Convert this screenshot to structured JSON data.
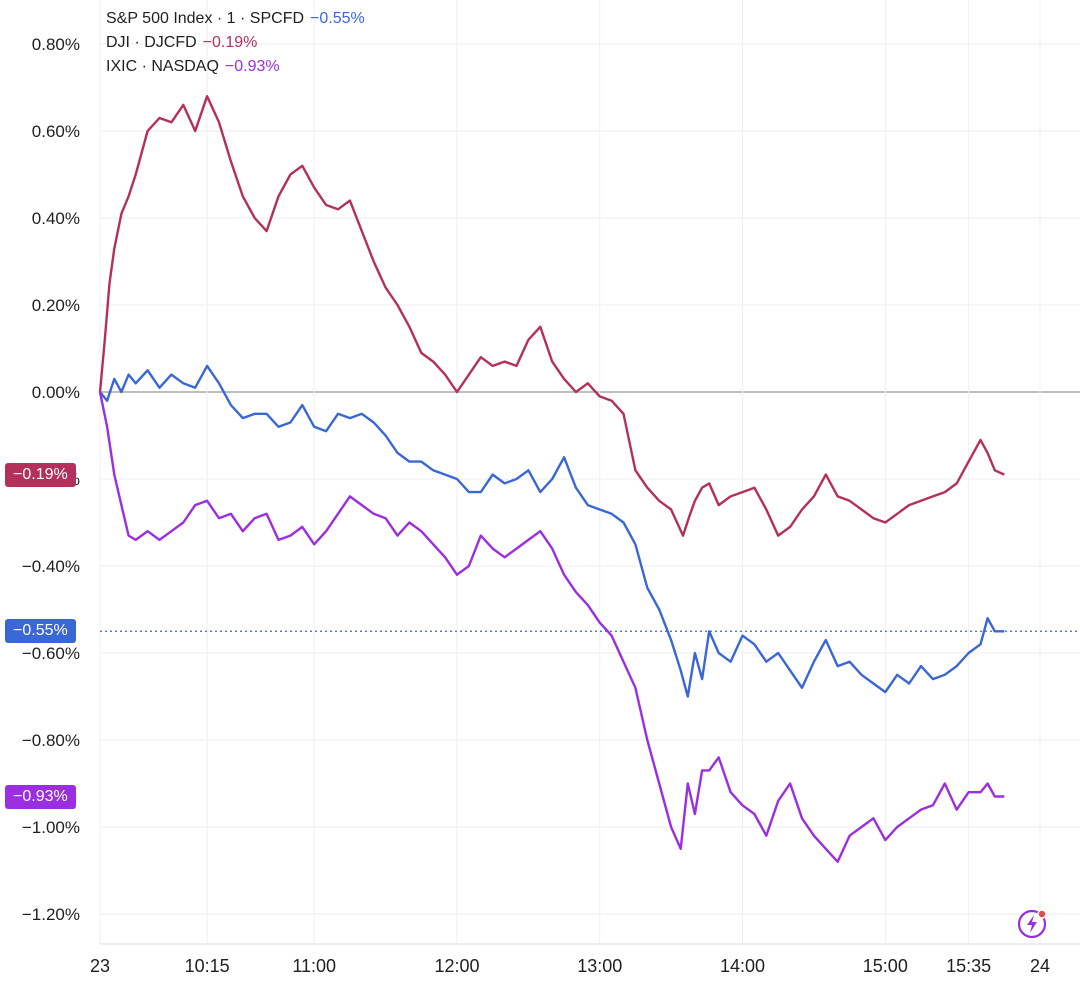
{
  "legend": [
    {
      "label": "S&P 500 Index · 1 · SPCFD",
      "value": "−0.55%",
      "color": "#3a67d6"
    },
    {
      "label": "DJI · DJCFD",
      "value": "−0.19%",
      "color": "#b4305a"
    },
    {
      "label": "IXIC · NASDAQ",
      "value": "−0.93%",
      "color": "#9b2ee0"
    }
  ],
  "tags": [
    {
      "text": "−0.19%",
      "color": "#b4305a"
    },
    {
      "text": "−0.55%",
      "color": "#3a67d6"
    },
    {
      "text": "−0.93%",
      "color": "#9b2ee0"
    }
  ],
  "flash_icon": "lightning-icon",
  "chart_data": {
    "type": "line",
    "title": "",
    "xlabel": "",
    "ylabel": "",
    "y_ticks": [
      "0.80%",
      "0.60%",
      "0.40%",
      "0.20%",
      "0.00%",
      "−0.20%",
      "−0.40%",
      "−0.60%",
      "−0.80%",
      "−1.00%",
      "−1.20%"
    ],
    "y_tick_values": [
      0.8,
      0.6,
      0.4,
      0.2,
      0.0,
      -0.2,
      -0.4,
      -0.6,
      -0.8,
      -1.0,
      -1.2
    ],
    "ylim": [
      -1.26,
      0.84
    ],
    "x_ticks": [
      "23",
      "10:15",
      "11:00",
      "12:00",
      "13:00",
      "14:00",
      "15:00",
      "15:35",
      "24"
    ],
    "x_tick_minutes": [
      0,
      45,
      90,
      150,
      210,
      270,
      330,
      365,
      395
    ],
    "xlim_minutes": [
      -3,
      400
    ],
    "grid": true,
    "zero_line": 0.0,
    "series": [
      {
        "name": "S&P 500 Index · 1 · SPCFD",
        "color": "#3a67d6",
        "last": -0.55,
        "t": [
          0,
          3,
          6,
          9,
          12,
          15,
          20,
          25,
          30,
          35,
          40,
          45,
          50,
          55,
          60,
          65,
          70,
          75,
          80,
          85,
          90,
          95,
          100,
          105,
          110,
          115,
          120,
          125,
          130,
          135,
          140,
          145,
          150,
          155,
          160,
          165,
          170,
          175,
          180,
          185,
          190,
          195,
          200,
          205,
          210,
          215,
          220,
          225,
          230,
          235,
          240,
          244,
          247,
          250,
          253,
          256,
          260,
          265,
          270,
          275,
          280,
          285,
          290,
          295,
          300,
          305,
          310,
          315,
          320,
          325,
          330,
          335,
          340,
          345,
          350,
          355,
          360,
          365,
          370,
          373,
          376,
          380
        ],
        "v": [
          0.0,
          -0.02,
          0.03,
          0.0,
          0.04,
          0.02,
          0.05,
          0.01,
          0.04,
          0.02,
          0.01,
          0.06,
          0.02,
          -0.03,
          -0.06,
          -0.05,
          -0.05,
          -0.08,
          -0.07,
          -0.03,
          -0.08,
          -0.09,
          -0.05,
          -0.06,
          -0.05,
          -0.07,
          -0.1,
          -0.14,
          -0.16,
          -0.16,
          -0.18,
          -0.19,
          -0.2,
          -0.23,
          -0.23,
          -0.19,
          -0.21,
          -0.2,
          -0.18,
          -0.23,
          -0.2,
          -0.15,
          -0.22,
          -0.26,
          -0.27,
          -0.28,
          -0.3,
          -0.35,
          -0.45,
          -0.5,
          -0.57,
          -0.64,
          -0.7,
          -0.6,
          -0.66,
          -0.55,
          -0.6,
          -0.62,
          -0.56,
          -0.58,
          -0.62,
          -0.6,
          -0.64,
          -0.68,
          -0.62,
          -0.57,
          -0.63,
          -0.62,
          -0.65,
          -0.67,
          -0.69,
          -0.65,
          -0.67,
          -0.63,
          -0.66,
          -0.65,
          -0.63,
          -0.6,
          -0.58,
          -0.52,
          -0.55,
          -0.55
        ]
      },
      {
        "name": "DJI · DJCFD",
        "color": "#b4305a",
        "last": -0.19,
        "t": [
          0,
          2,
          4,
          6,
          9,
          12,
          15,
          20,
          25,
          30,
          35,
          40,
          45,
          50,
          55,
          60,
          65,
          70,
          75,
          80,
          85,
          90,
          95,
          100,
          105,
          110,
          115,
          120,
          125,
          130,
          135,
          140,
          145,
          150,
          155,
          160,
          165,
          170,
          175,
          180,
          185,
          190,
          195,
          200,
          205,
          210,
          215,
          220,
          225,
          230,
          235,
          240,
          245,
          248,
          250,
          253,
          256,
          260,
          265,
          270,
          275,
          280,
          285,
          290,
          295,
          300,
          305,
          310,
          315,
          320,
          325,
          330,
          335,
          340,
          345,
          350,
          355,
          360,
          365,
          370,
          373,
          376,
          380
        ],
        "v": [
          0.0,
          0.12,
          0.25,
          0.33,
          0.41,
          0.45,
          0.5,
          0.6,
          0.63,
          0.62,
          0.66,
          0.6,
          0.68,
          0.62,
          0.53,
          0.45,
          0.4,
          0.37,
          0.45,
          0.5,
          0.52,
          0.47,
          0.43,
          0.42,
          0.44,
          0.37,
          0.3,
          0.24,
          0.2,
          0.15,
          0.09,
          0.07,
          0.04,
          0.0,
          0.04,
          0.08,
          0.06,
          0.07,
          0.06,
          0.12,
          0.15,
          0.07,
          0.03,
          0.0,
          0.02,
          -0.01,
          -0.02,
          -0.05,
          -0.18,
          -0.22,
          -0.25,
          -0.27,
          -0.33,
          -0.28,
          -0.25,
          -0.22,
          -0.21,
          -0.26,
          -0.24,
          -0.23,
          -0.22,
          -0.27,
          -0.33,
          -0.31,
          -0.27,
          -0.24,
          -0.19,
          -0.24,
          -0.25,
          -0.27,
          -0.29,
          -0.3,
          -0.28,
          -0.26,
          -0.25,
          -0.24,
          -0.23,
          -0.21,
          -0.16,
          -0.11,
          -0.14,
          -0.18,
          -0.19
        ]
      },
      {
        "name": "IXIC · NASDAQ",
        "color": "#9b2ee0",
        "last": -0.93,
        "t": [
          0,
          3,
          6,
          9,
          12,
          15,
          20,
          25,
          30,
          35,
          40,
          45,
          50,
          55,
          60,
          65,
          70,
          75,
          80,
          85,
          90,
          95,
          100,
          105,
          110,
          115,
          120,
          125,
          130,
          135,
          140,
          145,
          150,
          155,
          160,
          165,
          170,
          175,
          180,
          185,
          190,
          195,
          200,
          205,
          210,
          215,
          220,
          225,
          230,
          235,
          240,
          244,
          247,
          250,
          253,
          256,
          260,
          265,
          270,
          275,
          280,
          285,
          290,
          295,
          300,
          305,
          310,
          315,
          320,
          325,
          330,
          335,
          340,
          345,
          350,
          355,
          360,
          365,
          370,
          373,
          376,
          380
        ],
        "v": [
          0.0,
          -0.08,
          -0.19,
          -0.26,
          -0.33,
          -0.34,
          -0.32,
          -0.34,
          -0.32,
          -0.3,
          -0.26,
          -0.25,
          -0.29,
          -0.28,
          -0.32,
          -0.29,
          -0.28,
          -0.34,
          -0.33,
          -0.31,
          -0.35,
          -0.32,
          -0.28,
          -0.24,
          -0.26,
          -0.28,
          -0.29,
          -0.33,
          -0.3,
          -0.32,
          -0.35,
          -0.38,
          -0.42,
          -0.4,
          -0.33,
          -0.36,
          -0.38,
          -0.36,
          -0.34,
          -0.32,
          -0.36,
          -0.42,
          -0.46,
          -0.49,
          -0.53,
          -0.56,
          -0.62,
          -0.68,
          -0.8,
          -0.9,
          -1.0,
          -1.05,
          -0.9,
          -0.97,
          -0.87,
          -0.87,
          -0.84,
          -0.92,
          -0.95,
          -0.97,
          -1.02,
          -0.94,
          -0.9,
          -0.98,
          -1.02,
          -1.05,
          -1.08,
          -1.02,
          -1.0,
          -0.98,
          -1.03,
          -1.0,
          -0.98,
          -0.96,
          -0.95,
          -0.9,
          -0.96,
          -0.92,
          -0.92,
          -0.9,
          -0.93,
          -0.93
        ]
      }
    ]
  }
}
